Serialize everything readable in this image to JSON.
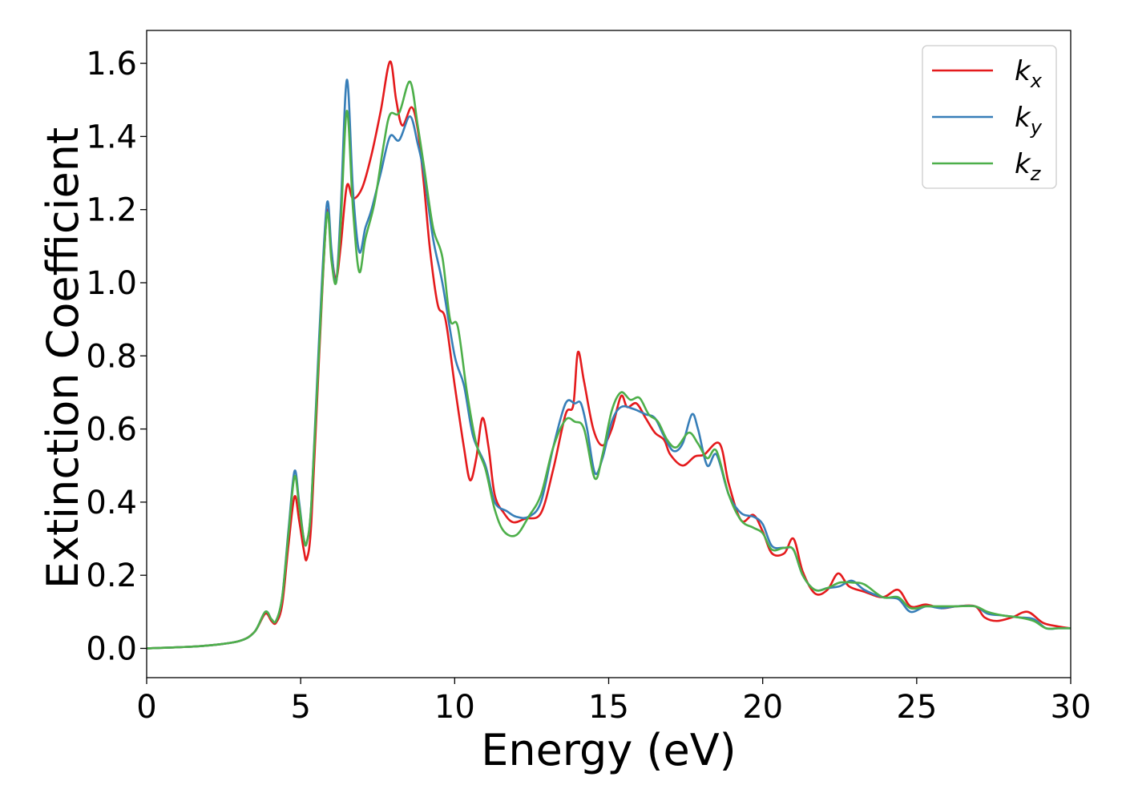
{
  "chart_data": {
    "type": "line",
    "title": "",
    "xlabel": "Energy (eV)",
    "ylabel": "Extinction Coefficient",
    "xlim": [
      0,
      30
    ],
    "ylim": [
      -0.08,
      1.69
    ],
    "x_ticks": [
      0,
      5,
      10,
      15,
      20,
      25,
      30
    ],
    "y_ticks": [
      0.0,
      0.2,
      0.4,
      0.6,
      0.8,
      1.0,
      1.2,
      1.4,
      1.6
    ],
    "grid": false,
    "legend_placement": "top-right",
    "series": [
      {
        "name": "k_x",
        "legend_base": "k",
        "legend_sub": "x",
        "color": "#e41a1c",
        "points": [
          [
            0,
            0.0
          ],
          [
            1,
            0.003
          ],
          [
            2,
            0.008
          ],
          [
            3,
            0.02
          ],
          [
            3.5,
            0.045
          ],
          [
            3.85,
            0.095
          ],
          [
            4.05,
            0.075
          ],
          [
            4.2,
            0.07
          ],
          [
            4.4,
            0.12
          ],
          [
            4.6,
            0.28
          ],
          [
            4.8,
            0.415
          ],
          [
            4.95,
            0.35
          ],
          [
            5.1,
            0.27
          ],
          [
            5.2,
            0.245
          ],
          [
            5.35,
            0.35
          ],
          [
            5.6,
            0.8
          ],
          [
            5.85,
            1.19
          ],
          [
            6.0,
            1.08
          ],
          [
            6.15,
            1.01
          ],
          [
            6.3,
            1.1
          ],
          [
            6.5,
            1.265
          ],
          [
            6.7,
            1.23
          ],
          [
            7.0,
            1.26
          ],
          [
            7.3,
            1.35
          ],
          [
            7.6,
            1.47
          ],
          [
            7.9,
            1.605
          ],
          [
            8.1,
            1.5
          ],
          [
            8.3,
            1.43
          ],
          [
            8.6,
            1.48
          ],
          [
            8.8,
            1.42
          ],
          [
            9.0,
            1.27
          ],
          [
            9.2,
            1.09
          ],
          [
            9.45,
            0.94
          ],
          [
            9.7,
            0.9
          ],
          [
            10.0,
            0.72
          ],
          [
            10.3,
            0.55
          ],
          [
            10.5,
            0.46
          ],
          [
            10.7,
            0.52
          ],
          [
            10.9,
            0.63
          ],
          [
            11.1,
            0.55
          ],
          [
            11.3,
            0.42
          ],
          [
            11.6,
            0.37
          ],
          [
            11.9,
            0.345
          ],
          [
            12.3,
            0.355
          ],
          [
            12.8,
            0.37
          ],
          [
            13.2,
            0.49
          ],
          [
            13.6,
            0.64
          ],
          [
            13.85,
            0.665
          ],
          [
            14.0,
            0.81
          ],
          [
            14.2,
            0.73
          ],
          [
            14.5,
            0.6
          ],
          [
            14.8,
            0.555
          ],
          [
            15.1,
            0.6
          ],
          [
            15.4,
            0.69
          ],
          [
            15.6,
            0.66
          ],
          [
            15.9,
            0.67
          ],
          [
            16.2,
            0.63
          ],
          [
            16.5,
            0.59
          ],
          [
            16.8,
            0.57
          ],
          [
            17.0,
            0.53
          ],
          [
            17.4,
            0.5
          ],
          [
            17.8,
            0.525
          ],
          [
            18.1,
            0.53
          ],
          [
            18.6,
            0.56
          ],
          [
            18.9,
            0.45
          ],
          [
            19.3,
            0.35
          ],
          [
            19.7,
            0.365
          ],
          [
            20.0,
            0.32
          ],
          [
            20.3,
            0.26
          ],
          [
            20.7,
            0.26
          ],
          [
            21.0,
            0.3
          ],
          [
            21.3,
            0.21
          ],
          [
            21.7,
            0.15
          ],
          [
            22.1,
            0.16
          ],
          [
            22.45,
            0.205
          ],
          [
            22.8,
            0.17
          ],
          [
            23.3,
            0.155
          ],
          [
            23.9,
            0.14
          ],
          [
            24.4,
            0.16
          ],
          [
            24.8,
            0.115
          ],
          [
            25.3,
            0.12
          ],
          [
            25.8,
            0.11
          ],
          [
            26.3,
            0.115
          ],
          [
            26.9,
            0.115
          ],
          [
            27.2,
            0.085
          ],
          [
            27.6,
            0.075
          ],
          [
            28.1,
            0.085
          ],
          [
            28.6,
            0.1
          ],
          [
            29.1,
            0.07
          ],
          [
            29.6,
            0.06
          ],
          [
            30,
            0.055
          ]
        ]
      },
      {
        "name": "k_y",
        "legend_base": "k",
        "legend_sub": "y",
        "color": "#377eb8",
        "points": [
          [
            0,
            0.0
          ],
          [
            1,
            0.003
          ],
          [
            2,
            0.008
          ],
          [
            3,
            0.02
          ],
          [
            3.5,
            0.045
          ],
          [
            3.85,
            0.1
          ],
          [
            4.05,
            0.08
          ],
          [
            4.2,
            0.075
          ],
          [
            4.4,
            0.14
          ],
          [
            4.6,
            0.32
          ],
          [
            4.8,
            0.485
          ],
          [
            4.95,
            0.4
          ],
          [
            5.1,
            0.3
          ],
          [
            5.2,
            0.29
          ],
          [
            5.35,
            0.4
          ],
          [
            5.6,
            0.85
          ],
          [
            5.85,
            1.215
          ],
          [
            6.0,
            1.09
          ],
          [
            6.15,
            1.0
          ],
          [
            6.3,
            1.2
          ],
          [
            6.5,
            1.555
          ],
          [
            6.7,
            1.25
          ],
          [
            6.9,
            1.085
          ],
          [
            7.1,
            1.15
          ],
          [
            7.3,
            1.2
          ],
          [
            7.6,
            1.3
          ],
          [
            7.9,
            1.4
          ],
          [
            8.2,
            1.39
          ],
          [
            8.55,
            1.455
          ],
          [
            8.8,
            1.38
          ],
          [
            9.0,
            1.3
          ],
          [
            9.3,
            1.12
          ],
          [
            9.6,
            1.0
          ],
          [
            10.0,
            0.8
          ],
          [
            10.3,
            0.72
          ],
          [
            10.6,
            0.58
          ],
          [
            11.0,
            0.5
          ],
          [
            11.3,
            0.4
          ],
          [
            11.7,
            0.375
          ],
          [
            12.0,
            0.36
          ],
          [
            12.4,
            0.36
          ],
          [
            12.8,
            0.4
          ],
          [
            13.2,
            0.55
          ],
          [
            13.6,
            0.67
          ],
          [
            13.9,
            0.67
          ],
          [
            14.1,
            0.67
          ],
          [
            14.3,
            0.6
          ],
          [
            14.55,
            0.48
          ],
          [
            14.8,
            0.52
          ],
          [
            15.1,
            0.62
          ],
          [
            15.4,
            0.66
          ],
          [
            15.8,
            0.655
          ],
          [
            16.2,
            0.64
          ],
          [
            16.5,
            0.63
          ],
          [
            16.8,
            0.58
          ],
          [
            17.1,
            0.54
          ],
          [
            17.4,
            0.56
          ],
          [
            17.7,
            0.64
          ],
          [
            17.9,
            0.6
          ],
          [
            18.2,
            0.5
          ],
          [
            18.5,
            0.53
          ],
          [
            18.9,
            0.42
          ],
          [
            19.3,
            0.37
          ],
          [
            19.7,
            0.36
          ],
          [
            20.0,
            0.34
          ],
          [
            20.3,
            0.28
          ],
          [
            20.7,
            0.275
          ],
          [
            21.0,
            0.27
          ],
          [
            21.3,
            0.2
          ],
          [
            21.7,
            0.16
          ],
          [
            22.1,
            0.165
          ],
          [
            22.5,
            0.17
          ],
          [
            22.9,
            0.185
          ],
          [
            23.3,
            0.16
          ],
          [
            23.9,
            0.14
          ],
          [
            24.4,
            0.135
          ],
          [
            24.8,
            0.1
          ],
          [
            25.3,
            0.115
          ],
          [
            25.8,
            0.11
          ],
          [
            26.3,
            0.115
          ],
          [
            26.9,
            0.115
          ],
          [
            27.3,
            0.095
          ],
          [
            27.8,
            0.09
          ],
          [
            28.3,
            0.085
          ],
          [
            28.8,
            0.08
          ],
          [
            29.2,
            0.055
          ],
          [
            29.6,
            0.055
          ],
          [
            30,
            0.055
          ]
        ]
      },
      {
        "name": "k_z",
        "legend_base": "k",
        "legend_sub": "z",
        "color": "#4daf4a",
        "points": [
          [
            0,
            0.0
          ],
          [
            1,
            0.003
          ],
          [
            2,
            0.008
          ],
          [
            3,
            0.02
          ],
          [
            3.5,
            0.045
          ],
          [
            3.85,
            0.1
          ],
          [
            4.05,
            0.08
          ],
          [
            4.2,
            0.075
          ],
          [
            4.4,
            0.14
          ],
          [
            4.6,
            0.31
          ],
          [
            4.8,
            0.47
          ],
          [
            4.95,
            0.39
          ],
          [
            5.1,
            0.3
          ],
          [
            5.2,
            0.29
          ],
          [
            5.35,
            0.4
          ],
          [
            5.6,
            0.82
          ],
          [
            5.85,
            1.185
          ],
          [
            6.0,
            1.06
          ],
          [
            6.15,
            1.0
          ],
          [
            6.3,
            1.16
          ],
          [
            6.5,
            1.47
          ],
          [
            6.7,
            1.2
          ],
          [
            6.9,
            1.03
          ],
          [
            7.1,
            1.12
          ],
          [
            7.4,
            1.22
          ],
          [
            7.7,
            1.38
          ],
          [
            7.9,
            1.46
          ],
          [
            8.2,
            1.465
          ],
          [
            8.55,
            1.55
          ],
          [
            8.8,
            1.43
          ],
          [
            9.0,
            1.32
          ],
          [
            9.3,
            1.15
          ],
          [
            9.6,
            1.07
          ],
          [
            9.85,
            0.9
          ],
          [
            10.1,
            0.88
          ],
          [
            10.4,
            0.7
          ],
          [
            10.7,
            0.56
          ],
          [
            11.0,
            0.49
          ],
          [
            11.3,
            0.38
          ],
          [
            11.6,
            0.32
          ],
          [
            12.0,
            0.31
          ],
          [
            12.4,
            0.36
          ],
          [
            12.8,
            0.42
          ],
          [
            13.2,
            0.55
          ],
          [
            13.6,
            0.625
          ],
          [
            13.9,
            0.62
          ],
          [
            14.2,
            0.6
          ],
          [
            14.55,
            0.465
          ],
          [
            14.8,
            0.53
          ],
          [
            15.1,
            0.65
          ],
          [
            15.4,
            0.7
          ],
          [
            15.7,
            0.68
          ],
          [
            16.0,
            0.685
          ],
          [
            16.3,
            0.64
          ],
          [
            16.6,
            0.62
          ],
          [
            16.9,
            0.57
          ],
          [
            17.2,
            0.55
          ],
          [
            17.6,
            0.59
          ],
          [
            17.9,
            0.56
          ],
          [
            18.2,
            0.52
          ],
          [
            18.5,
            0.54
          ],
          [
            18.9,
            0.42
          ],
          [
            19.3,
            0.35
          ],
          [
            19.7,
            0.33
          ],
          [
            20.0,
            0.315
          ],
          [
            20.3,
            0.27
          ],
          [
            20.7,
            0.275
          ],
          [
            21.0,
            0.27
          ],
          [
            21.3,
            0.2
          ],
          [
            21.7,
            0.16
          ],
          [
            22.1,
            0.165
          ],
          [
            22.5,
            0.18
          ],
          [
            22.9,
            0.18
          ],
          [
            23.3,
            0.175
          ],
          [
            23.9,
            0.14
          ],
          [
            24.4,
            0.14
          ],
          [
            24.8,
            0.11
          ],
          [
            25.3,
            0.115
          ],
          [
            25.8,
            0.115
          ],
          [
            26.3,
            0.115
          ],
          [
            26.9,
            0.115
          ],
          [
            27.3,
            0.1
          ],
          [
            27.8,
            0.09
          ],
          [
            28.3,
            0.085
          ],
          [
            28.8,
            0.075
          ],
          [
            29.2,
            0.055
          ],
          [
            29.6,
            0.055
          ],
          [
            30,
            0.055
          ]
        ]
      }
    ]
  }
}
